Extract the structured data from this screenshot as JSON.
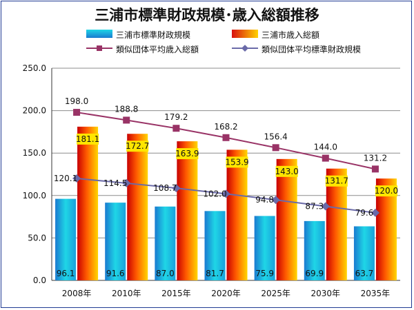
{
  "chart_data": {
    "type": "bar",
    "title": "三浦市標準財政規模･歳入総額推移",
    "categories": [
      "2008年",
      "2010年",
      "2015年",
      "2020年",
      "2025年",
      "2030年",
      "2035年"
    ],
    "series": [
      {
        "name": "三浦市標準財政規模",
        "kind": "bar",
        "values": [
          96.1,
          91.6,
          87.0,
          81.7,
          75.9,
          69.9,
          63.7
        ],
        "color": "#1aa6d9"
      },
      {
        "name": "三浦市歳入総額",
        "kind": "bar",
        "values": [
          181.1,
          172.7,
          163.9,
          153.9,
          143.0,
          131.7,
          120.0
        ],
        "color": "#e8300c"
      },
      {
        "name": "類似団体平均歳入総額",
        "kind": "line",
        "values": [
          198.0,
          188.8,
          179.2,
          168.2,
          156.4,
          144.0,
          131.2
        ],
        "color": "#993366",
        "marker": "square"
      },
      {
        "name": "類似団体平均標準財政規模",
        "kind": "line",
        "values": [
          120.1,
          114.5,
          108.7,
          102.0,
          94.8,
          87.3,
          79.6
        ],
        "color": "#6a6aa8",
        "marker": "diamond"
      }
    ],
    "yticks": [
      "0.0",
      "50.0",
      "100.0",
      "150.0",
      "200.0",
      "250.0"
    ],
    "ylim": [
      0,
      250
    ],
    "xlabel": "",
    "ylabel": "",
    "grid": true,
    "legend_position": "top"
  }
}
